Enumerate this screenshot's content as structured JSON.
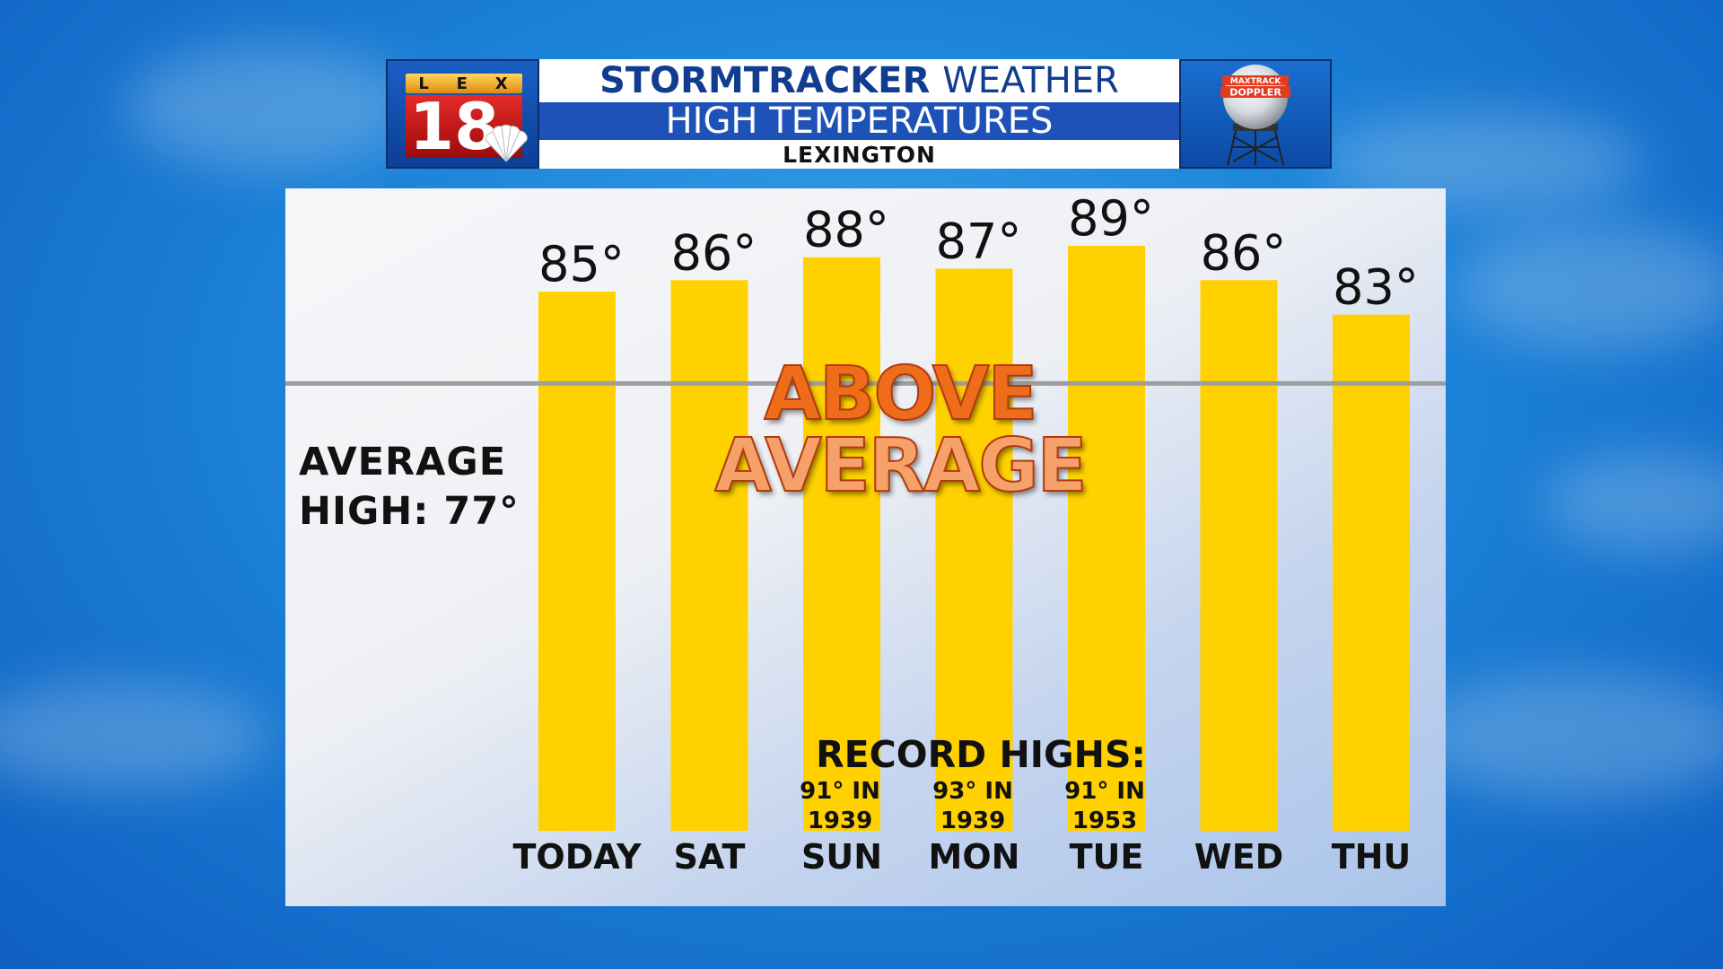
{
  "header": {
    "logo_letters": [
      "L",
      "E",
      "X"
    ],
    "logo_number": "18",
    "title_bold": "STORMTRACKER",
    "title_rest": "WEATHER",
    "subtitle": "HIGH TEMPERATURES",
    "location": "LEXINGTON",
    "radar_text_1": "MAXTRACK",
    "radar_text_2": "DOPPLER",
    "radar_icon": "radar-dome-icon",
    "network_icon": "peacock-icon"
  },
  "average": {
    "line1": "AVERAGE",
    "line2": "HIGH: 77°"
  },
  "callout": {
    "line1": "ABOVE",
    "line2": "AVERAGE"
  },
  "records": {
    "title": "RECORD HIGHS:",
    "items": [
      {
        "day": "SUN",
        "temp": "91° IN",
        "year": "1939"
      },
      {
        "day": "MON",
        "temp": "93° IN",
        "year": "1939"
      },
      {
        "day": "TUE",
        "temp": "91° IN",
        "year": "1953"
      }
    ]
  },
  "chart_data": {
    "type": "bar",
    "title": "HIGH TEMPERATURES",
    "categories": [
      "TODAY",
      "SAT",
      "SUN",
      "MON",
      "TUE",
      "WED",
      "THU"
    ],
    "values": [
      85,
      86,
      88,
      87,
      89,
      86,
      83
    ],
    "value_labels": [
      "85°",
      "86°",
      "88°",
      "87°",
      "89°",
      "86°",
      "83°"
    ],
    "reference_line": {
      "label": "AVERAGE HIGH: 77°",
      "value": 77
    },
    "ylim": [
      38,
      94
    ],
    "grid": false,
    "colors": {
      "bar": "#ffd100",
      "reference_line": "#9e9e9e"
    }
  }
}
